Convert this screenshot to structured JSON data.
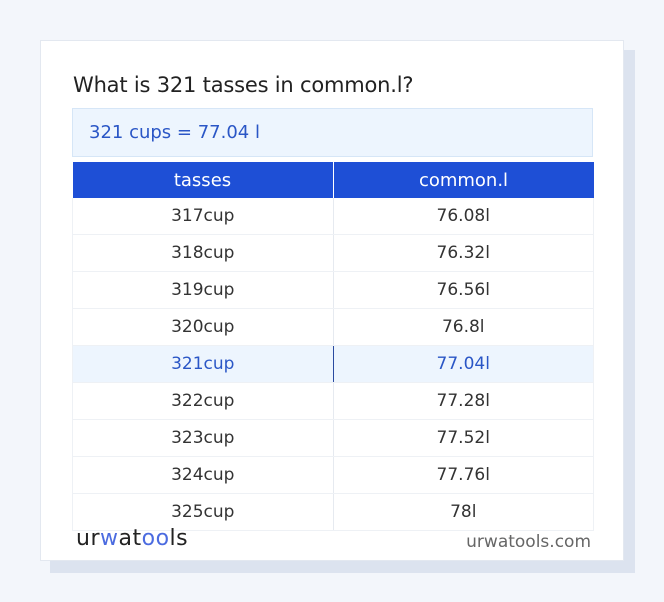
{
  "title": "What is 321 tasses in common.l?",
  "result": "321 cups = 77.04 l",
  "table": {
    "headers": [
      "tasses",
      "common.l"
    ],
    "rows": [
      {
        "from": "317cup",
        "to": "76.08l"
      },
      {
        "from": "318cup",
        "to": "76.32l"
      },
      {
        "from": "319cup",
        "to": "76.56l"
      },
      {
        "from": "320cup",
        "to": "76.8l"
      },
      {
        "from": "321cup",
        "to": "77.04l",
        "highlighted": true
      },
      {
        "from": "322cup",
        "to": "77.28l"
      },
      {
        "from": "323cup",
        "to": "77.52l"
      },
      {
        "from": "324cup",
        "to": "77.76l"
      },
      {
        "from": "325cup",
        "to": "78l"
      }
    ]
  },
  "footer": {
    "logo_parts": [
      "ur",
      "w",
      "at",
      "oo",
      "ls"
    ],
    "site": "urwatools.com"
  },
  "colors": {
    "header_bg": "#1e4fd6",
    "highlight_bg": "#edf5fe",
    "accent_text": "#2a56c6"
  }
}
